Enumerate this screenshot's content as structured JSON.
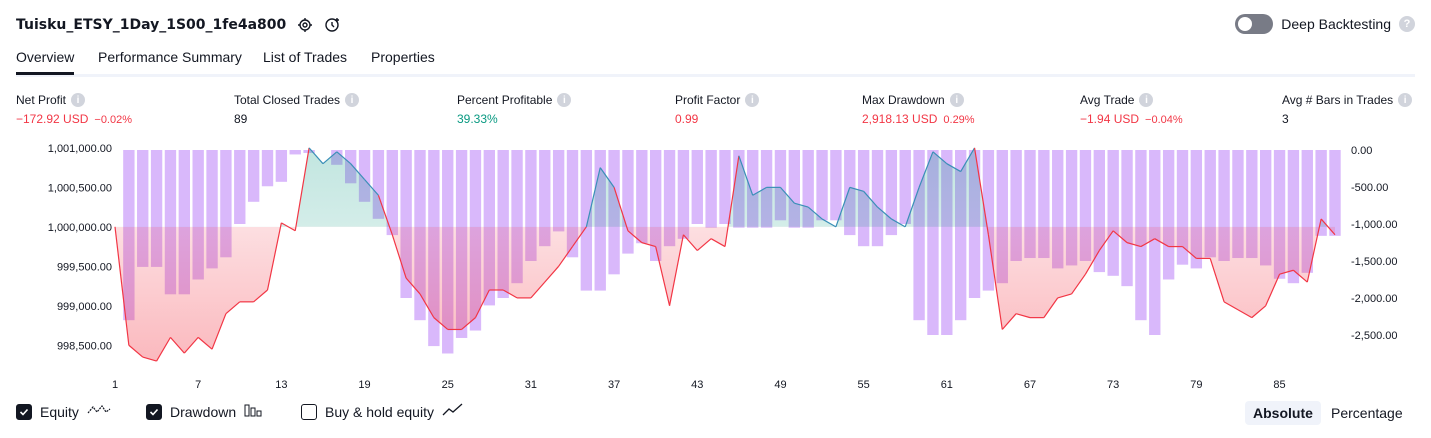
{
  "header": {
    "title": "Tuisku_ETSY_1Day_1S00_1fe4a800",
    "deep_backtesting_label": "Deep Backtesting",
    "deep_backtesting_on": false
  },
  "tabs": [
    {
      "label": "Overview",
      "active": true
    },
    {
      "label": "Performance Summary",
      "active": false
    },
    {
      "label": "List of Trades",
      "active": false
    },
    {
      "label": "Properties",
      "active": false
    }
  ],
  "metrics": [
    {
      "label": "Net Profit",
      "value": "−172.92 USD",
      "sub": "−0.02%",
      "color": "red"
    },
    {
      "label": "Total Closed Trades",
      "value": "89",
      "sub": "",
      "color": "default"
    },
    {
      "label": "Percent Profitable",
      "value": "39.33%",
      "sub": "",
      "color": "green"
    },
    {
      "label": "Profit Factor",
      "value": "0.99",
      "sub": "",
      "color": "red"
    },
    {
      "label": "Max Drawdown",
      "value": "2,918.13 USD",
      "sub": "0.29%",
      "color": "red"
    },
    {
      "label": "Avg Trade",
      "value": "−1.94 USD",
      "sub": "−0.04%",
      "color": "red"
    },
    {
      "label": "Avg # Bars in Trades",
      "value": "3",
      "sub": "",
      "color": "default"
    }
  ],
  "legend": {
    "equity": {
      "label": "Equity",
      "checked": true
    },
    "drawdown": {
      "label": "Drawdown",
      "checked": true
    },
    "buyhold": {
      "label": "Buy & hold equity",
      "checked": false
    }
  },
  "view_toggle": {
    "absolute": "Absolute",
    "percentage": "Percentage",
    "selected": "Absolute"
  },
  "colors": {
    "red": "#f23645",
    "green": "#089981",
    "drawdown": "#d9b8fb",
    "line_up": "#3a8fb7"
  },
  "chart_data": {
    "type": "line",
    "x": [
      1,
      2,
      3,
      4,
      5,
      6,
      7,
      8,
      9,
      10,
      11,
      12,
      13,
      14,
      15,
      16,
      17,
      18,
      19,
      20,
      21,
      22,
      23,
      24,
      25,
      26,
      27,
      28,
      29,
      30,
      31,
      32,
      33,
      34,
      35,
      36,
      37,
      38,
      39,
      40,
      41,
      42,
      43,
      44,
      45,
      46,
      47,
      48,
      49,
      50,
      51,
      52,
      53,
      54,
      55,
      56,
      57,
      58,
      59,
      60,
      61,
      62,
      63,
      64,
      65,
      66,
      67,
      68,
      69,
      70,
      71,
      72,
      73,
      74,
      75,
      76,
      77,
      78,
      79,
      80,
      81,
      82,
      83,
      84,
      85,
      86,
      87,
      88,
      89
    ],
    "x_ticks": [
      "1",
      "7",
      "13",
      "19",
      "25",
      "31",
      "37",
      "43",
      "49",
      "55",
      "61",
      "67",
      "73",
      "79",
      "85"
    ],
    "left_axis": {
      "ticks": [
        "1,001,000.00",
        "1,000,500.00",
        "1,000,000.00",
        "999,500.00",
        "999,000.00",
        "998,500.00"
      ],
      "ylim": [
        998250,
        1001100
      ]
    },
    "right_axis": {
      "ticks": [
        "0.00",
        "-500.00",
        "-1,000.00",
        "-1,500.00",
        "-2,000.00",
        "-2,500.00"
      ],
      "ylim": [
        -2900,
        0
      ]
    },
    "baseline_equity": 1000000,
    "series": [
      {
        "name": "Equity",
        "values": [
          1000000,
          998500,
          998350,
          998300,
          998600,
          998400,
          998600,
          998450,
          998900,
          999050,
          999050,
          999200,
          1000050,
          999950,
          1001000,
          1000800,
          1000950,
          1000800,
          1000600,
          1000400,
          999900,
          999350,
          999150,
          998850,
          998700,
          998700,
          998850,
          999200,
          999200,
          999100,
          999100,
          999300,
          999500,
          999750,
          1000000,
          1000750,
          1000500,
          999950,
          999800,
          999750,
          999000,
          999900,
          999700,
          999850,
          999750,
          1000900,
          1000400,
          1000500,
          1000500,
          1000300,
          1000250,
          1000100,
          1000000,
          1000500,
          1000450,
          1000250,
          1000100,
          1000000,
          1000500,
          1000950,
          1000800,
          1000700,
          1001000,
          999900,
          998700,
          998900,
          998850,
          998850,
          999100,
          999150,
          999400,
          999700,
          999950,
          999800,
          999750,
          999850,
          999750,
          999750,
          999600,
          999600,
          999050,
          998950,
          998850,
          999000,
          999400,
          999450,
          999300,
          1000100,
          999900
        ],
        "label_note": ""
      },
      {
        "name": "Drawdown",
        "values": [
          0,
          -2300,
          -1580,
          -1580,
          -1950,
          -1950,
          -1750,
          -1600,
          -1450,
          -1000,
          -700,
          -490,
          -430,
          -60,
          -40,
          0,
          -200,
          -450,
          -700,
          -930,
          -1150,
          -2000,
          -2300,
          -2650,
          -2750,
          -2540,
          -2440,
          -2100,
          -2000,
          -1800,
          -1500,
          -1300,
          -1100,
          -1450,
          -1900,
          -1900,
          -1680,
          -1400,
          -1260,
          -1500,
          -1300,
          -1200,
          -1000,
          -1050,
          -1000,
          -1050,
          -1050,
          -1050,
          -950,
          -1050,
          -1050,
          -950,
          -950,
          -1150,
          -1300,
          -1300,
          -1150,
          -1000,
          -2300,
          -2500,
          -2500,
          -2300,
          -2000,
          -1900,
          -1800,
          -1500,
          -1460,
          -1460,
          -1600,
          -1560,
          -1500,
          -1650,
          -1700,
          -1840,
          -2300,
          -2500,
          -1750,
          -1550,
          -1600,
          -1450,
          -1500,
          -1460,
          -1460,
          -1560,
          -1740,
          -1800,
          -1660,
          -1160,
          -1160
        ]
      }
    ],
    "grid": false,
    "fill_above": "green",
    "fill_below": "red"
  }
}
